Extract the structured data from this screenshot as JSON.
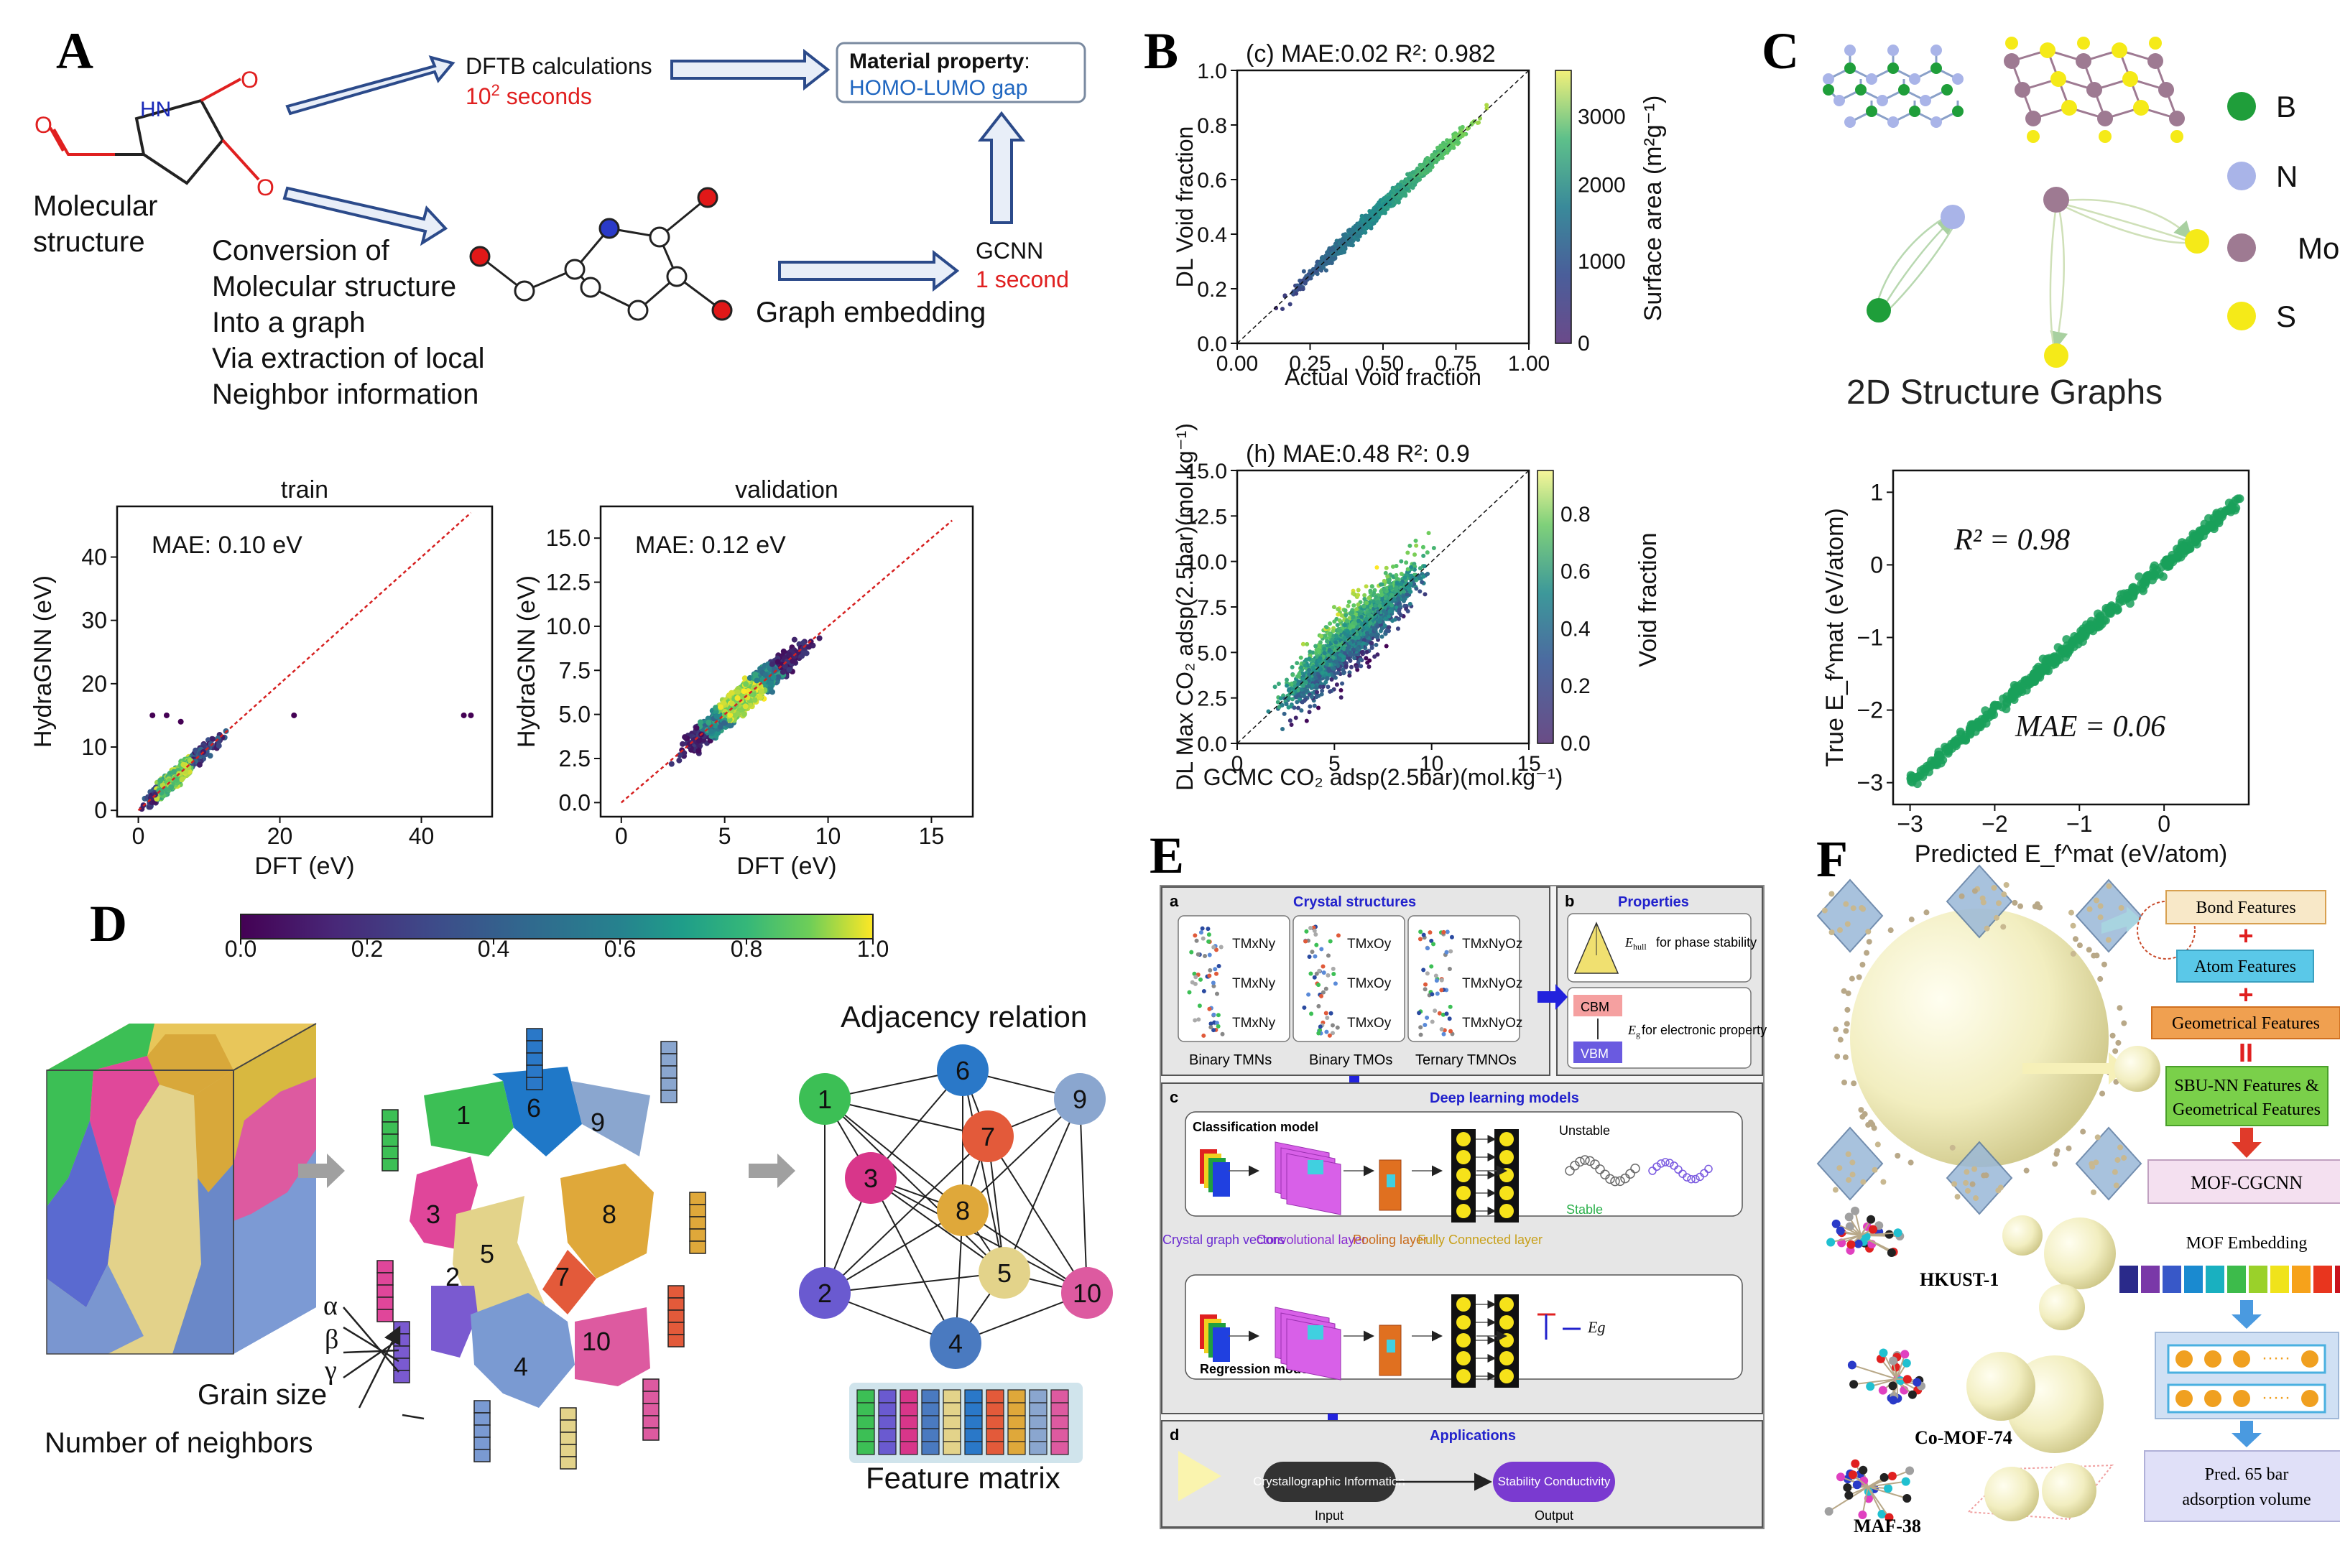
{
  "panel_labels": {
    "A": "A",
    "B": "B",
    "C": "C",
    "D": "D",
    "E": "E",
    "F": "F"
  },
  "panelA": {
    "molecule_atoms": {
      "n": "HN",
      "o1": "O",
      "o2": "O",
      "o3": "O"
    },
    "molecular_structure": [
      "Molecular",
      "structure"
    ],
    "dftb": {
      "title": "DFTB calculations",
      "time_base": "10",
      "time_exp": "2",
      "time_unit": " seconds"
    },
    "property": {
      "label": "Material property",
      "colon": ":",
      "value": "HOMO-LUMO gap"
    },
    "conversion": [
      "Conversion of",
      "Molecular structure",
      "Into a graph",
      "Via extraction of local",
      "Neighbor information"
    ],
    "gcnn": {
      "title": "GCNN",
      "time": "1 second"
    },
    "graph_embedding": "Graph embedding",
    "colorbar_ticks": [
      "0.0",
      "0.2",
      "0.4",
      "0.6",
      "0.8",
      "1.0"
    ]
  },
  "panelB": {
    "colorbar1_label": "Surface area (m²g⁻¹)",
    "colorbar2_label": "Void fraction"
  },
  "panelC": {
    "legend": [
      {
        "label": "B",
        "color": "#1f9e3a"
      },
      {
        "label": "N",
        "color": "#a9b4e8"
      },
      {
        "label": "Mo",
        "color": "#9e7a92"
      },
      {
        "label": "S",
        "color": "#f5ea18"
      }
    ],
    "graphs_title": "2D Structure Graphs"
  },
  "panelD": {
    "grain_labels": [
      "1",
      "2",
      "3",
      "4",
      "5",
      "6",
      "7",
      "8",
      "9",
      "10"
    ],
    "features": [
      "α",
      "β",
      "γ",
      "Grain size",
      "Number of neighbors"
    ],
    "adjacency_title": "Adjacency relation",
    "feature_matrix": "Feature matrix"
  },
  "panelE": {
    "a_label": "a",
    "a_title": "Crystal structures",
    "tmn_rows": [
      "TM",
      "TM",
      "TM"
    ],
    "captions": [
      "Binary TMNs",
      "Binary TMOs",
      "Ternary TMNOs"
    ],
    "b_label": "b",
    "b_title": "Properties",
    "ehull": "for phase stability",
    "eg": "for electronic property",
    "cbm": "CBM",
    "vbm": "VBM",
    "c_label": "c",
    "c_title": "Deep learning models",
    "classification": "Classification model",
    "regression": "Regression model",
    "unstable": "Unstable",
    "stable": "Stable",
    "layers": [
      "Crystal graph vectors",
      "Convolutional layer",
      "Pooling layer",
      "Fully Connected layer"
    ],
    "d_label": "d",
    "d_title": "Applications",
    "input_box": "Crystallographic Information",
    "input": "Input",
    "output_box": "Stability Conductivity",
    "output": "Output"
  },
  "panelF": {
    "features": [
      "Bond Features",
      "Atom Features",
      "Geometrical Features"
    ],
    "sbu": "SBU-NN Features & Geometrical Features",
    "cgcnn": "MOF-CGCNN",
    "embedding": "MOF Embedding",
    "pred": "Pred.   65 bar adsorption volume",
    "mofs": [
      "HKUST-1",
      "Co-MOF-74",
      "MAF-38"
    ],
    "embedding_colors": [
      "#2a2a8a",
      "#7a38a8",
      "#3858c8",
      "#1a8ad0",
      "#19b0c0",
      "#3dbb4b",
      "#9ad12a",
      "#f0e31b",
      "#f6a21b",
      "#e8351e",
      "#c8141e"
    ]
  },
  "charts": {
    "chart_data": [
      {
        "id": "A-train",
        "type": "scatter",
        "title": "train",
        "xlabel": "DFT (eV)",
        "ylabel": "HydraGNN (eV)",
        "xlim": [
          -3,
          50
        ],
        "ylim": [
          -1,
          48
        ],
        "xticks": [
          "0",
          "20",
          "40"
        ],
        "yticks": [
          "0",
          "10",
          "20",
          "30",
          "40"
        ],
        "annotation": "MAE: 0.10 eV",
        "parity_line": true
      },
      {
        "id": "A-validation",
        "type": "scatter",
        "title": "validation",
        "xlabel": "DFT (eV)",
        "ylabel": "HydraGNN (eV)",
        "xlim": [
          -1,
          17
        ],
        "ylim": [
          -0.8,
          16.8
        ],
        "xticks": [
          "0",
          "5",
          "10",
          "15"
        ],
        "yticks": [
          "0.0",
          "2.5",
          "5.0",
          "7.5",
          "10.0",
          "12.5",
          "15.0"
        ],
        "annotation": "MAE: 0.12 eV",
        "parity_line": true
      },
      {
        "id": "B-void",
        "type": "scatter",
        "title": "(c) MAE:0.02 R²: 0.982",
        "xlabel": "Actual Void fraction",
        "ylabel": "DL Void fraction",
        "xlim": [
          0,
          1
        ],
        "ylim": [
          0,
          1
        ],
        "xticks": [
          "0.00",
          "0.25",
          "0.50",
          "0.75",
          "1.00"
        ],
        "yticks": [
          "0.0",
          "0.2",
          "0.4",
          "0.6",
          "0.8",
          "1.0"
        ],
        "colorbar_ticks": [
          "0",
          "1000",
          "2000",
          "3000"
        ],
        "parity_line": true
      },
      {
        "id": "B-co2",
        "type": "scatter",
        "title": "(h) MAE:0.48 R²: 0.9",
        "xlabel": "GCMC CO₂ adsp(2.5bar)(mol.kg⁻¹)",
        "ylabel": "DL Max CO₂ adsp(2.5bar)(mol.kg⁻¹)",
        "xlim": [
          0,
          15
        ],
        "ylim": [
          0,
          15
        ],
        "xticks": [
          "0",
          "5",
          "10",
          "15"
        ],
        "yticks": [
          "0.0",
          "2.5",
          "5.0",
          "7.5",
          "10.0",
          "12.5",
          "15.0"
        ],
        "colorbar_ticks": [
          "0.0",
          "0.2",
          "0.4",
          "0.6",
          "0.8"
        ],
        "parity_line": true
      },
      {
        "id": "C-parity",
        "type": "scatter",
        "xlabel": "Predicted E_f^mat (eV/atom)",
        "ylabel": "True E_f^mat (eV/atom)",
        "xlim": [
          -3.2,
          1.0
        ],
        "ylim": [
          -3.3,
          1.3
        ],
        "xticks": [
          "−3",
          "−2",
          "−1",
          "0"
        ],
        "yticks": [
          "1",
          "0",
          "−1",
          "−2",
          "−3"
        ],
        "annotations": [
          "R² = 0.98",
          "MAE = 0.06"
        ],
        "parity_line": true
      }
    ]
  }
}
